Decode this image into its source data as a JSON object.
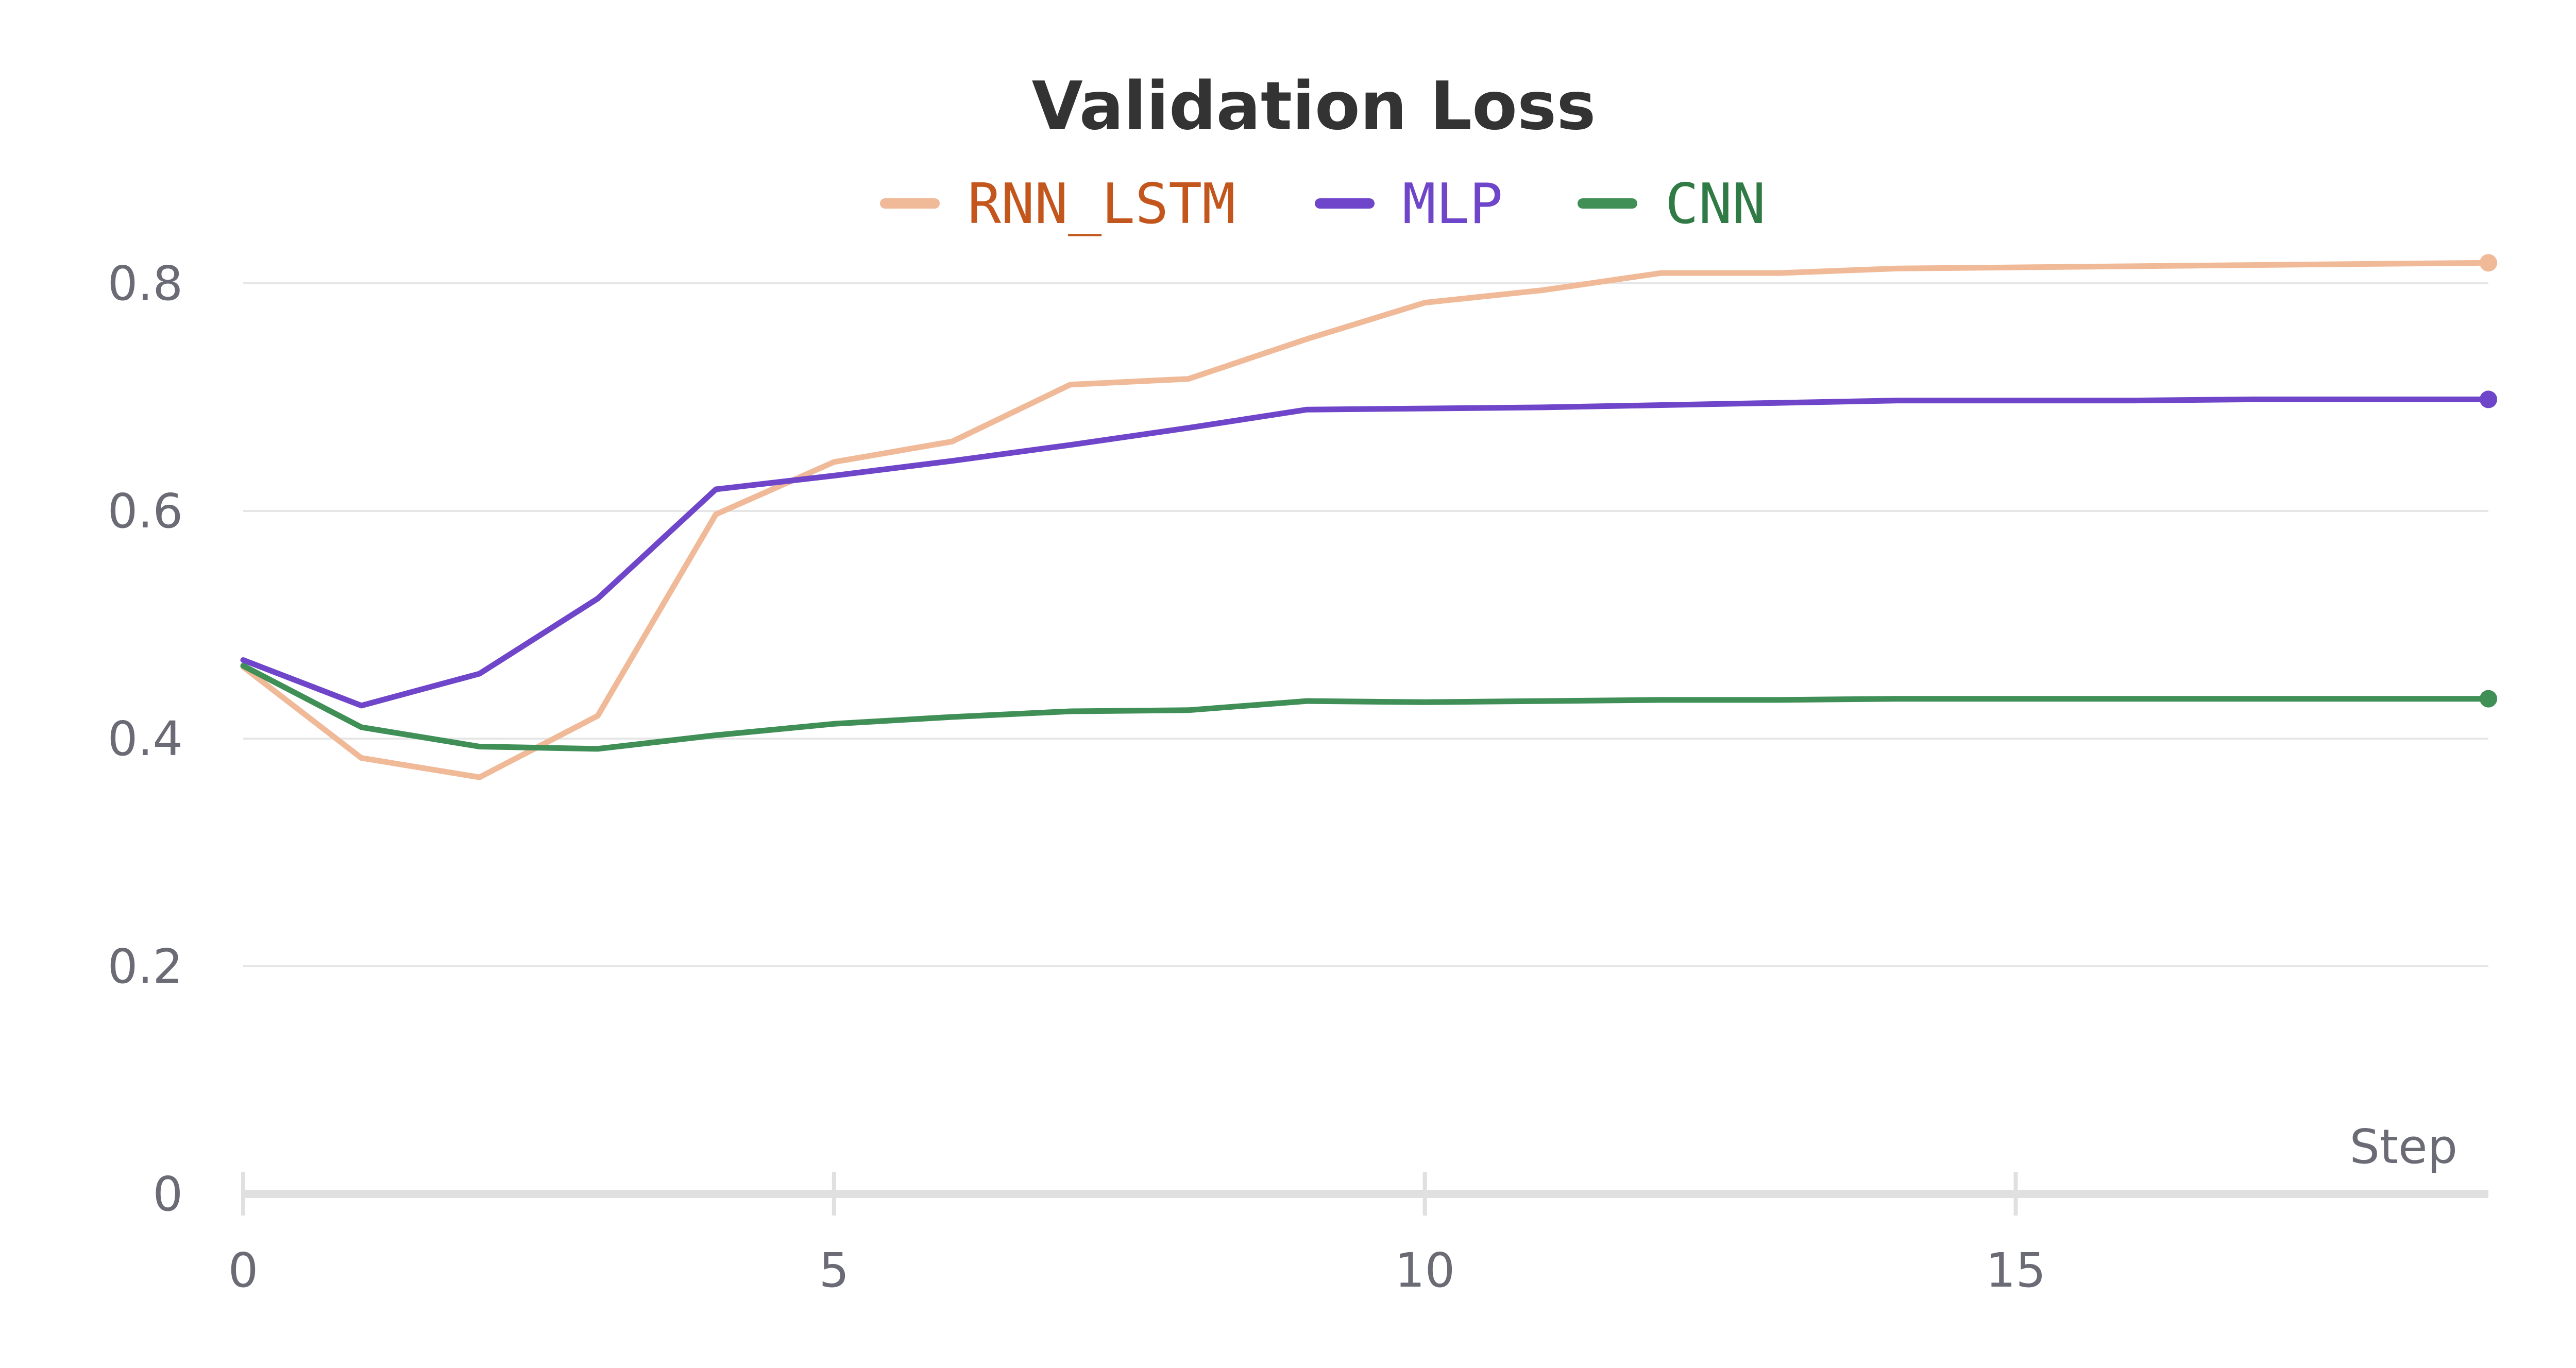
{
  "chart_data": {
    "type": "line",
    "title": "Validation Loss",
    "xlabel": "Step",
    "ylabel": "",
    "xlim": [
      0,
      19
    ],
    "ylim": [
      0,
      0.87
    ],
    "x_ticks": [
      0,
      5,
      10,
      15
    ],
    "x_tick_labels": [
      "0",
      "5",
      "10",
      "15"
    ],
    "y_ticks": [
      0,
      0.2,
      0.4,
      0.6,
      0.8
    ],
    "y_tick_labels": [
      "0",
      "0.2",
      "0.4",
      "0.6",
      "0.8"
    ],
    "grid": "horizontal",
    "legend_position": "top-center",
    "x": [
      0,
      1,
      2,
      3,
      4,
      5,
      6,
      7,
      8,
      9,
      10,
      11,
      12,
      13,
      14,
      15,
      16,
      17,
      18,
      19
    ],
    "series": [
      {
        "name": "RNN_LSTM",
        "color": "#f0b998",
        "label_color": "#c2561c",
        "values": [
          0.463,
          0.383,
          0.366,
          0.42,
          0.597,
          0.643,
          0.661,
          0.711,
          0.716,
          0.751,
          0.783,
          0.794,
          0.809,
          0.809,
          0.813,
          0.814,
          0.815,
          0.816,
          0.817,
          0.818
        ]
      },
      {
        "name": "MLP",
        "color": "#6f45c9",
        "label_color": "#6f45c9",
        "values": [
          0.469,
          0.429,
          0.457,
          0.523,
          0.619,
          0.631,
          0.644,
          0.658,
          0.673,
          0.689,
          0.69,
          0.691,
          0.693,
          0.695,
          0.697,
          0.697,
          0.697,
          0.698,
          0.698,
          0.698
        ]
      },
      {
        "name": "CNN",
        "color": "#3f8f57",
        "label_color": "#2f7a45",
        "values": [
          0.464,
          0.41,
          0.393,
          0.391,
          0.403,
          0.413,
          0.419,
          0.424,
          0.425,
          0.433,
          0.432,
          0.433,
          0.434,
          0.434,
          0.435,
          0.435,
          0.435,
          0.435,
          0.435,
          0.435
        ]
      }
    ]
  },
  "colors": {
    "gridline": "#e6e6e6",
    "x_axis_line": "#e0e0e0",
    "tick_text": "#6b6b76",
    "title_text": "#333333"
  }
}
